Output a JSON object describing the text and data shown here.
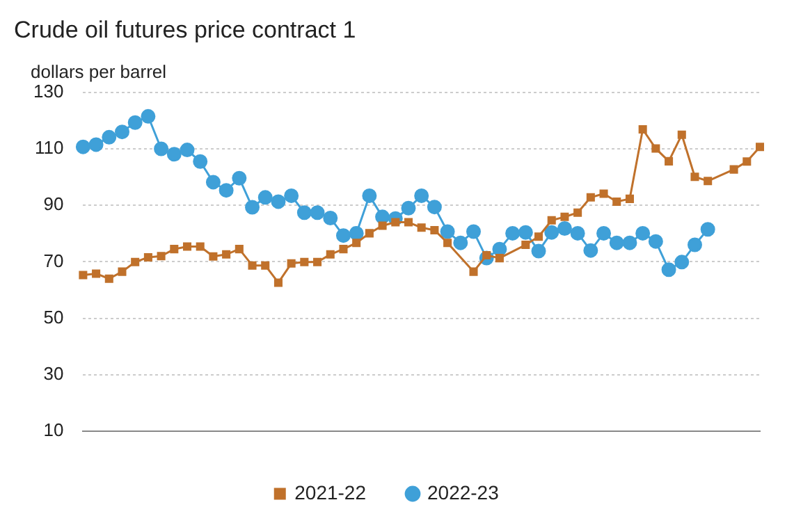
{
  "chart_data": {
    "type": "line",
    "title": "Crude oil futures price contract 1",
    "ylabel": "dollars per barrel",
    "categories": [
      null,
      null,
      null,
      null,
      null,
      null,
      null,
      null,
      null,
      null,
      null,
      null,
      null,
      null,
      null,
      null,
      null,
      null,
      null,
      null,
      null,
      null,
      null,
      null,
      null,
      null,
      null,
      null,
      null,
      null,
      null,
      null,
      null,
      null,
      null,
      null,
      null,
      null,
      null,
      null,
      null,
      null,
      null,
      null,
      null,
      null,
      null,
      null,
      null,
      null,
      null,
      null,
      null
    ],
    "series": [
      {
        "name": "2021-22",
        "color": "#c0712b",
        "marker": "square",
        "values": [
          65.3,
          65.8,
          64.0,
          66.5,
          69.9,
          71.6,
          72.0,
          74.5,
          75.4,
          75.4,
          71.9,
          72.6,
          74.5,
          68.7,
          68.7,
          62.6,
          69.4,
          69.9,
          69.9,
          72.6,
          74.5,
          76.7,
          80.1,
          82.8,
          84.0,
          84.0,
          82.1,
          81.2,
          76.7,
          null,
          66.5,
          72.3,
          71.3,
          null,
          76.0,
          78.9,
          84.7,
          85.9,
          87.4,
          92.8,
          94.1,
          91.3,
          92.3,
          116.9,
          110.1,
          105.6,
          115.0,
          100.1,
          98.6,
          null,
          102.7,
          105.5,
          110.7
        ]
      },
      {
        "name": "2022-23",
        "color": "#3fa0d8",
        "marker": "circle",
        "values": [
          110.7,
          111.5,
          114.1,
          116.0,
          119.3,
          121.5,
          110.0,
          108.1,
          109.6,
          105.5,
          98.2,
          95.3,
          99.6,
          89.3,
          92.8,
          91.3,
          93.4,
          87.4,
          87.4,
          85.5,
          79.3,
          80.1,
          93.4,
          85.9,
          85.3,
          89.0,
          93.4,
          89.4,
          80.7,
          76.7,
          80.7,
          71.3,
          74.5,
          80.1,
          80.4,
          73.8,
          80.4,
          81.8,
          80.1,
          74.0,
          80.1,
          76.7,
          76.7,
          80.1,
          77.2,
          67.2,
          69.9,
          76.0,
          81.5,
          null,
          null,
          null,
          null
        ]
      }
    ],
    "ylim": [
      10,
      130
    ],
    "yticks": [
      10,
      30,
      50,
      70,
      90,
      110,
      130
    ],
    "grid": "y",
    "legend": "bottom",
    "tick_labels": "y",
    "line_style": "solid"
  }
}
